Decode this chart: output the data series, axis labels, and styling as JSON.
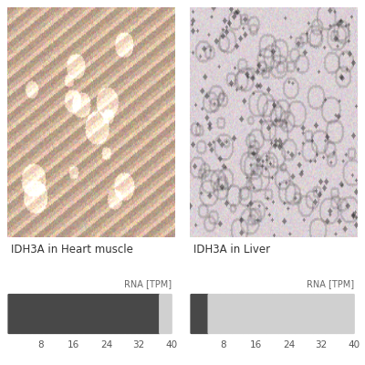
{
  "left_label": "IDH3A in Heart muscle",
  "right_label": "IDH3A in Liver",
  "rna_label": "RNA [TPM]",
  "scale_ticks": [
    8,
    16,
    24,
    32,
    40
  ],
  "n_bars": 28,
  "heart_muscle_filled": 26,
  "liver_filled": 3,
  "bar_dark_color": "#484848",
  "bar_light_color": "#d0d0d0",
  "background_color": "#ffffff",
  "label_fontsize": 8.5,
  "tick_fontsize": 7.5,
  "rna_label_fontsize": 7.0
}
